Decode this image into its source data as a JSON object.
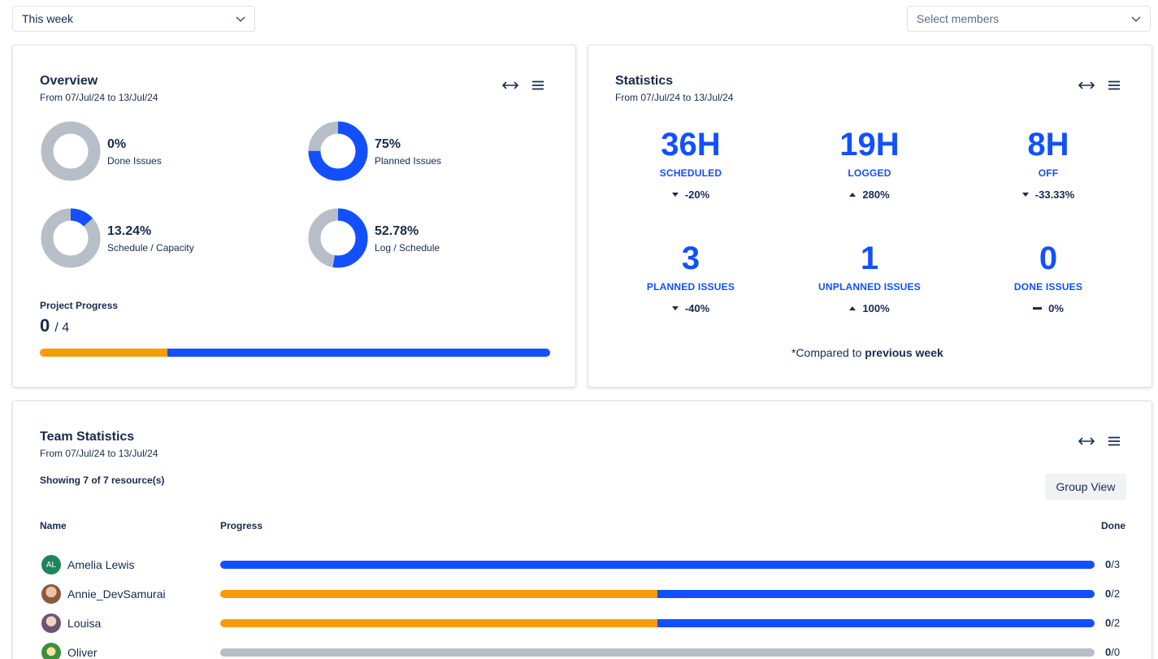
{
  "filters": {
    "period": "This week",
    "members_placeholder": "Select members"
  },
  "colors": {
    "blue": "#1250ff",
    "orange": "#f79a0e",
    "gray": "#b8bec8"
  },
  "overview": {
    "title": "Overview",
    "range": "From 07/Jul/24 to 13/Jul/24",
    "donuts": [
      {
        "value": "0%",
        "label": "Done Issues",
        "fraction": 0
      },
      {
        "value": "75%",
        "label": "Planned Issues",
        "fraction": 0.75
      },
      {
        "value": "13.24%",
        "label": "Schedule / Capacity",
        "fraction": 0.1324
      },
      {
        "value": "52.78%",
        "label": "Log / Schedule",
        "fraction": 0.5278
      }
    ],
    "project_progress": {
      "label": "Project Progress",
      "done": "0",
      "total": "/ 4",
      "orange_fraction": 0.25
    }
  },
  "statistics": {
    "title": "Statistics",
    "range": "From 07/Jul/24 to 13/Jul/24",
    "items": [
      {
        "value": "36H",
        "name": "SCHEDULED",
        "change": "-20%",
        "trend": "down"
      },
      {
        "value": "19H",
        "name": "LOGGED",
        "change": "280%",
        "trend": "up"
      },
      {
        "value": "8H",
        "name": "OFF",
        "change": "-33.33%",
        "trend": "down"
      },
      {
        "value": "3",
        "name": "PLANNED ISSUES",
        "change": "-40%",
        "trend": "down"
      },
      {
        "value": "1",
        "name": "UNPLANNED ISSUES",
        "change": "100%",
        "trend": "up"
      },
      {
        "value": "0",
        "name": "DONE ISSUES",
        "change": "0%",
        "trend": "flat"
      }
    ],
    "compared_prefix": "*Compared to ",
    "compared_bold": "previous week"
  },
  "team": {
    "title": "Team Statistics",
    "range": "From 07/Jul/24 to 13/Jul/24",
    "showing": "Showing 7 of 7 resource(s)",
    "group_view": "Group View",
    "col_name": "Name",
    "col_progress": "Progress",
    "col_done": "Done",
    "rows": [
      {
        "name": "Amelia Lewis",
        "initials": "AL",
        "avatar_color": "#1f845a",
        "done": "0",
        "total": "/3",
        "orange_fraction": 0,
        "empty": false
      },
      {
        "name": "Annie_DevSamurai",
        "initials": "",
        "avatar_color": "#b07a5a",
        "done": "0",
        "total": "/2",
        "orange_fraction": 0.5,
        "empty": false
      },
      {
        "name": "Louisa",
        "initials": "",
        "avatar_color": "#8a6f93",
        "done": "0",
        "total": "/2",
        "orange_fraction": 0.5,
        "empty": false
      },
      {
        "name": "Oliver",
        "initials": "",
        "avatar_color": "#3f8f3a",
        "done": "0",
        "total": "/0",
        "orange_fraction": 0,
        "empty": true
      }
    ]
  }
}
